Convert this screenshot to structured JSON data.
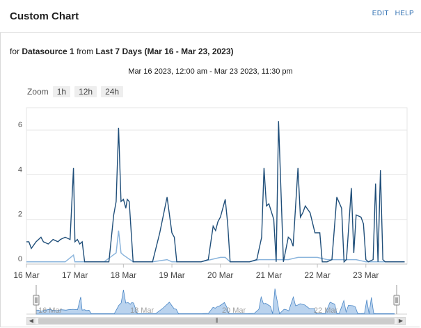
{
  "header": {
    "title": "Custom Chart",
    "edit_label": "EDIT",
    "help_label": "HELP"
  },
  "subtitle": {
    "prefix": "for",
    "datasource": "Datasource 1",
    "middle": "from",
    "period": "Last 7 Days (Mar 16 - Mar 23, 2023)"
  },
  "range_label": "Mar 16 2023, 12:00 am - Mar 23 2023, 11:30 pm",
  "zoom": {
    "label": "Zoom",
    "buttons": [
      "1h",
      "12h",
      "24h"
    ]
  },
  "colors": {
    "series_dark": "#1f4e79",
    "series_light": "#8ab4dc",
    "navigator_fill": "#a9c8ea",
    "grid": "#e6e6e6"
  },
  "chart_data": {
    "type": "line",
    "title": "",
    "ylim": [
      0,
      7
    ],
    "yticks": [
      0,
      2,
      4,
      6
    ],
    "xticks": [
      "16 Mar",
      "17 Mar",
      "18 Mar",
      "19 Mar",
      "20 Mar",
      "21 Mar",
      "22 Mar",
      "23 Mar"
    ],
    "navigator_ticks": [
      "16 Mar",
      "18 Mar",
      "20 Mar",
      "22 Mar"
    ],
    "series": [
      {
        "x": [
          16.0,
          16.05,
          16.1,
          16.2,
          16.3,
          16.35,
          16.45,
          16.55,
          16.65,
          16.7,
          16.8,
          16.9,
          16.97,
          17.0,
          17.05,
          17.1,
          17.15,
          17.2,
          17.3,
          17.4,
          17.55,
          17.7,
          17.8,
          17.85,
          17.9,
          17.95,
          18.0,
          18.05,
          18.08,
          18.12,
          18.2,
          18.3,
          18.4,
          18.5,
          18.6,
          18.75,
          18.9,
          19.0,
          19.05,
          19.1,
          19.15,
          19.2,
          19.3,
          19.4,
          19.5,
          19.6,
          19.75,
          19.85,
          19.9,
          19.95,
          20.0,
          20.1,
          20.15,
          20.2,
          20.3,
          20.4,
          20.5,
          20.6,
          20.75,
          20.85,
          20.9,
          20.95,
          21.0,
          21.1,
          21.15,
          21.2,
          21.3,
          21.4,
          21.45,
          21.5,
          21.6,
          21.65,
          21.7,
          21.75,
          21.85,
          21.95,
          22.0,
          22.05,
          22.1,
          22.2,
          22.3,
          22.4,
          22.5,
          22.55,
          22.6,
          22.7,
          22.75,
          22.8,
          22.9,
          22.95,
          23.0,
          23.05,
          23.15,
          23.2,
          23.25,
          23.3,
          23.35,
          23.4,
          23.45,
          23.5,
          23.6,
          23.7,
          23.8
        ],
        "y": [
          1.0,
          1.0,
          0.7,
          1.0,
          1.2,
          1.0,
          0.9,
          1.1,
          1.0,
          1.1,
          1.2,
          1.1,
          4.3,
          1.0,
          1.1,
          0.9,
          1.0,
          0.1,
          0.1,
          0.1,
          0.1,
          0.1,
          2.2,
          2.8,
          6.1,
          2.8,
          2.9,
          2.5,
          2.9,
          2.8,
          0.1,
          0.1,
          0.1,
          0.1,
          0.1,
          1.4,
          3.0,
          1.4,
          1.2,
          0.1,
          0.1,
          0.1,
          0.1,
          0.1,
          0.1,
          0.1,
          0.2,
          1.7,
          1.5,
          1.9,
          2.1,
          2.9,
          1.8,
          0.1,
          0.1,
          0.1,
          0.1,
          0.1,
          0.2,
          1.2,
          4.3,
          2.6,
          2.7,
          2.0,
          0.1,
          6.4,
          0.1,
          1.2,
          1.1,
          0.8,
          4.3,
          2.1,
          2.3,
          2.6,
          2.3,
          1.4,
          1.4,
          1.4,
          0.1,
          0.1,
          0.2,
          3.0,
          2.5,
          0.1,
          0.2,
          3.4,
          0.5,
          2.2,
          2.1,
          1.8,
          0.2,
          0.1,
          0.2,
          3.6,
          0.1,
          4.2,
          0.2,
          0.1,
          0.1,
          0.1,
          0.1,
          0.1,
          0.1
        ]
      },
      {
        "x": [
          16.0,
          16.2,
          16.4,
          16.6,
          16.8,
          16.97,
          17.0,
          17.2,
          17.4,
          17.6,
          17.85,
          17.9,
          17.95,
          18.0,
          18.2,
          18.4,
          18.6,
          18.9,
          19.0,
          19.2,
          19.4,
          19.6,
          19.8,
          20.0,
          20.1,
          20.2,
          20.4,
          20.6,
          20.8,
          21.0,
          21.2,
          21.4,
          21.6,
          21.8,
          22.0,
          22.2,
          22.4,
          22.6,
          22.8,
          23.0,
          23.2,
          23.4,
          23.8
        ],
        "y": [
          0.1,
          0.1,
          0.1,
          0.1,
          0.1,
          0.4,
          0.1,
          0.1,
          0.1,
          0.1,
          0.5,
          1.5,
          0.5,
          0.4,
          0.1,
          0.1,
          0.1,
          0.2,
          0.1,
          0.1,
          0.1,
          0.1,
          0.2,
          0.3,
          0.3,
          0.1,
          0.1,
          0.1,
          0.2,
          0.2,
          0.2,
          0.2,
          0.3,
          0.3,
          0.3,
          0.2,
          0.2,
          0.2,
          0.2,
          0.1,
          0.1,
          0.1,
          0.1
        ]
      }
    ]
  }
}
